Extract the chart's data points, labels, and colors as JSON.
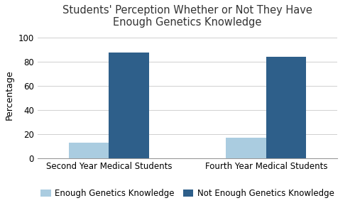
{
  "title": "Students' Perception Whether or Not They Have\nEnough Genetics Knowledge",
  "categories": [
    "Second Year Medical Students",
    "Fourth Year Medical Students"
  ],
  "series": [
    {
      "label": "Enough Genetics Knowledge",
      "values": [
        13,
        17
      ],
      "color": "#aacce0"
    },
    {
      "label": "Not Enough Genetics Knowledge",
      "values": [
        88,
        84
      ],
      "color": "#2e5f8a"
    }
  ],
  "ylabel": "Percentage",
  "ylim": [
    0,
    105
  ],
  "yticks": [
    0,
    20,
    40,
    60,
    80,
    100
  ],
  "bar_width": 0.28,
  "group_centers": [
    0.5,
    1.6
  ],
  "background_color": "#ffffff",
  "title_fontsize": 10.5,
  "axis_fontsize": 9,
  "legend_fontsize": 8.5,
  "tick_fontsize": 8.5,
  "grid_color": "#d0d0d0"
}
